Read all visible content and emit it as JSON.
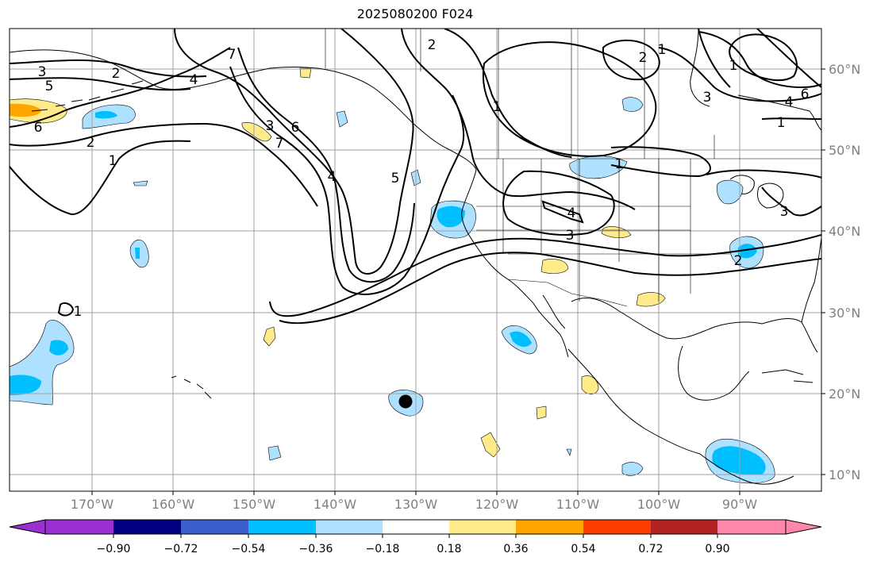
{
  "title": "2025080200 F024",
  "lat_labels": [
    "60°N",
    "50°N",
    "40°N",
    "30°N",
    "20°N",
    "10°N"
  ],
  "lon_labels": [
    "170°W",
    "160°W",
    "150°W",
    "140°W",
    "130°W",
    "120°W",
    "110°W",
    "100°W",
    "90°W"
  ],
  "colorbar": {
    "ticks": [
      "−0.90",
      "−0.72",
      "−0.54",
      "−0.36",
      "−0.18",
      "0.18",
      "0.36",
      "0.54",
      "0.72",
      "0.90"
    ],
    "colors": [
      "#9b30d0",
      "#000080",
      "#3b5fcd",
      "#00bfff",
      "#ade1ff",
      "#ffffff",
      "#ffeb8a",
      "#ffa500",
      "#ff3c00",
      "#b22222",
      "#ff88aa"
    ]
  },
  "contour_labels": [
    "3",
    "5",
    "6",
    "2",
    "1",
    "2",
    "7",
    "4",
    "3",
    "6",
    "7",
    "4",
    "5",
    "2",
    "2",
    "1",
    "1",
    "3",
    "6",
    "4",
    "1",
    "1",
    "4",
    "3",
    "3",
    "1",
    "2",
    "1"
  ],
  "chart_data": {
    "type": "map",
    "projection": "PlateCarree",
    "lon_range": [
      -180,
      -80
    ],
    "lat_range": [
      8,
      65
    ],
    "fill_colors": {
      "neg_weak": "#ade1ff",
      "neg_mod": "#00bfff",
      "pos_weak": "#ffeb8a",
      "pos_mod": "#ffa500"
    },
    "marker": {
      "lon": -131,
      "lat": 19,
      "color": "#000000"
    }
  }
}
